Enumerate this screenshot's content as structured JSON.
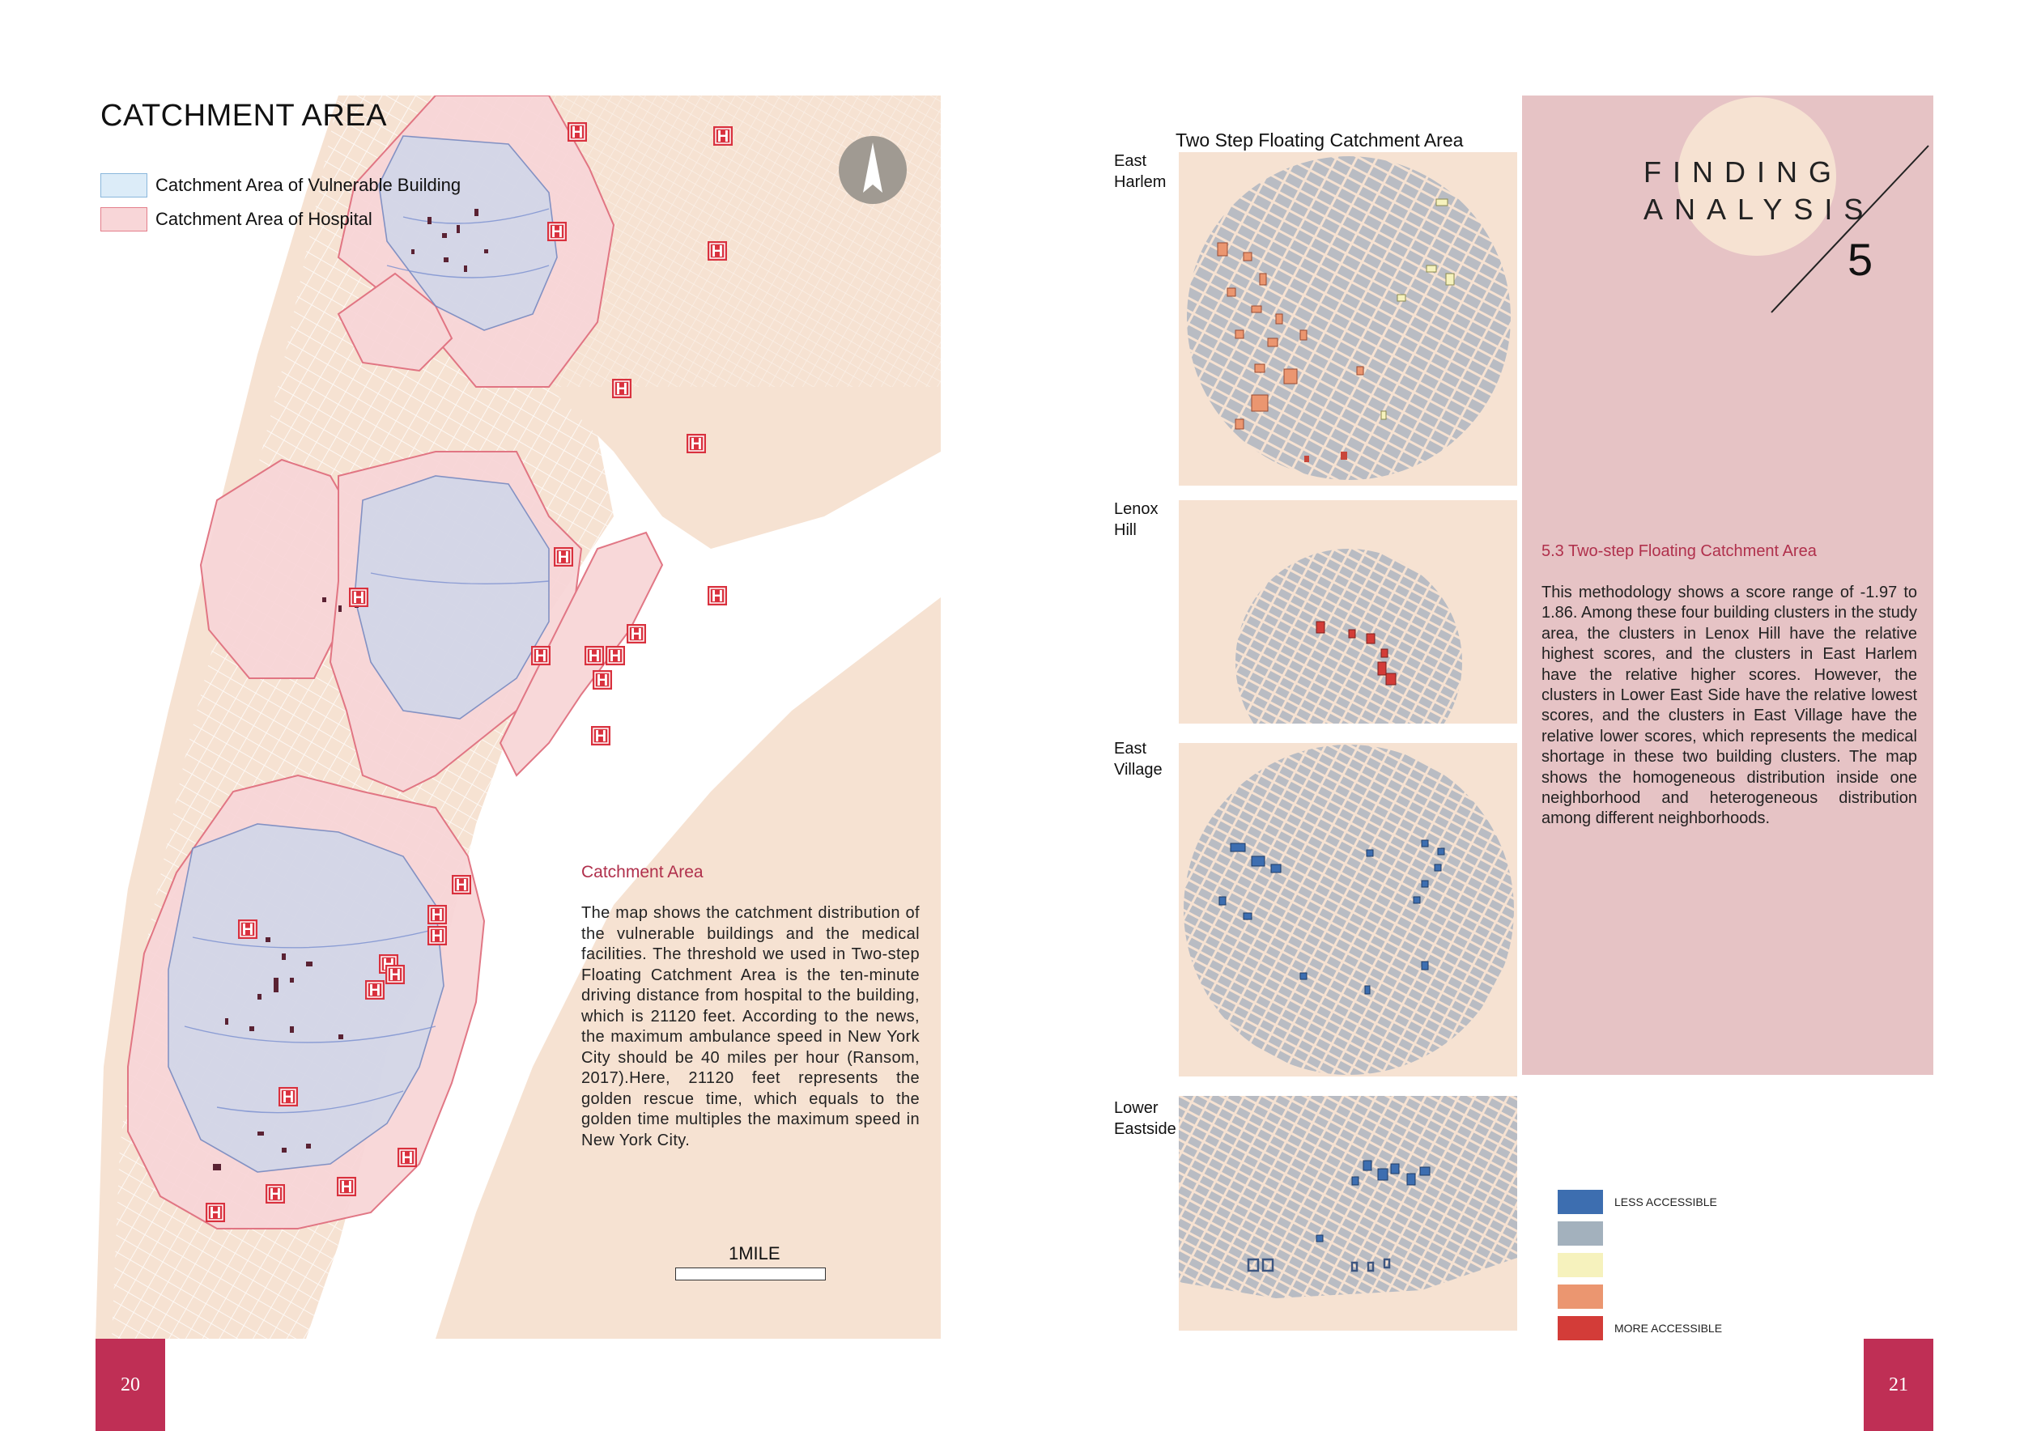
{
  "left_page": {
    "title": "CATCHMENT AREA",
    "legend": [
      {
        "label": "Catchment Area of  Vulnerable Building",
        "color": "#dcecf8"
      },
      {
        "label": "Catchment Area of  Hospital",
        "color": "#f8d6d8"
      }
    ],
    "map": {
      "hospital_marker": "H",
      "north_arrow": "north-arrow-icon",
      "scale_label": "1MILE"
    },
    "section_heading": "Catchment Area",
    "paragraph": "The map shows the catchment distribution of the vulnerable buildings and the medical facilities. The threshold we used in Two-step Floating Catchment Area is the ten-minute driving distance from hospital to the building, which is 21120 feet. According to the news, the maximum ambulance speed in New York City should be 40 miles per hour (Ransom, 2017).Here, 21120 feet represents the golden rescue time, which equals to the golden time multiples the maximum speed in New York City.",
    "page_number": "20"
  },
  "right_page": {
    "map_title": "Two Step Floating Catchment Area",
    "neighborhoods": [
      {
        "label_line1": "East",
        "label_line2": "Harlem"
      },
      {
        "label_line1": "Lenox",
        "label_line2": "Hill"
      },
      {
        "label_line1": "East",
        "label_line2": "Village"
      },
      {
        "label_line1": "Lower",
        "label_line2": "Eastside"
      }
    ],
    "chapter": {
      "title_line1": "FINDING",
      "title_line2": "ANALYSIS",
      "number": "5"
    },
    "section_heading": "5.3 Two-step Floating Catchment Area",
    "paragraph": "This methodology shows a score range of -1.97 to 1.86. Among these four building clusters in the study area, the clusters in Lenox Hill have the relative highest scores, and the clusters in East Harlem have the relative higher scores. However, the clusters in Lower East Side have the relative lowest scores, and the clusters in East Village have the relative lower scores, which represents the medical shortage in these two building clusters. The map shows the homogeneous distribution inside one neighborhood and heterogeneous distribution among different neighborhoods.",
    "accessibility_legend": [
      {
        "label": "LESS ACCESSIBLE",
        "color": "#3d6eb0"
      },
      {
        "label": "",
        "color": "#a3b1bd"
      },
      {
        "label": "",
        "color": "#f6f2bd"
      },
      {
        "label": "",
        "color": "#eb9670"
      },
      {
        "label": "MORE ACCESSIBLE",
        "color": "#d33c38"
      }
    ],
    "page_number": "21"
  },
  "colors": {
    "brand": "#bf2f55",
    "land": "#f6e2d2",
    "hospital_catchment": "#f8d6d8",
    "building_catchment": "#dcecf8",
    "panel": "#e6c3c5"
  }
}
